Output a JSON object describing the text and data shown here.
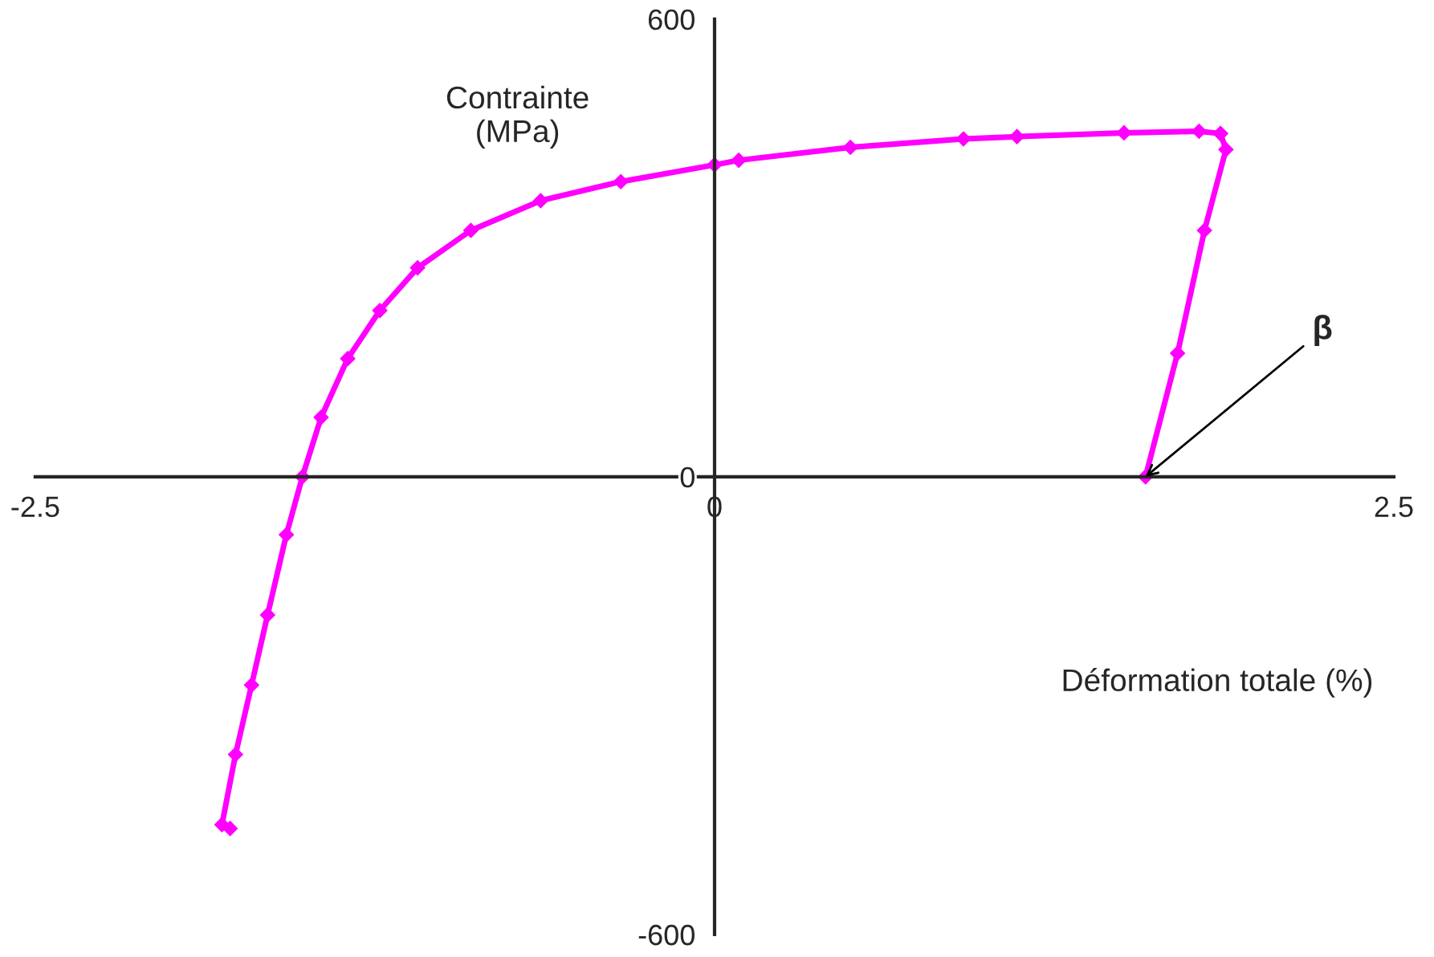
{
  "chart_data": {
    "type": "line",
    "xlabel": "Déformation totale (%)",
    "ylabel": "Contrainte\n(MPa)",
    "xlim": [
      -2.5,
      2.5
    ],
    "ylim": [
      -600,
      600
    ],
    "xticks": [
      -2.5,
      0,
      2.5
    ],
    "yticks": [
      -600,
      0,
      600
    ],
    "grid": false,
    "legend": false,
    "marker": "diamond",
    "line_style": "solid",
    "series": [
      {
        "color": "#ff00ff",
        "x": [
          -1.783,
          -1.813,
          -1.763,
          -1.704,
          -1.645,
          -1.576,
          -1.517,
          -1.448,
          -1.35,
          -1.232,
          -1.093,
          -0.897,
          -0.64,
          -0.345,
          0,
          0.089,
          0.5,
          0.916,
          1.113,
          1.507,
          1.783,
          1.862
        ],
        "values": [
          -461,
          -456,
          -364,
          -273,
          -181,
          -76,
          0,
          78,
          155,
          218,
          274,
          323,
          362,
          387,
          409,
          415,
          432,
          443,
          446,
          451,
          453,
          450
        ]
      },
      {
        "color": "#ff00ff",
        "x": [
          1.862,
          1.882,
          1.803,
          1.704,
          1.586
        ],
        "values": [
          450,
          429,
          323,
          162,
          0
        ]
      }
    ],
    "annotations": [
      {
        "text": "β",
        "x": 1.586,
        "y": 0
      }
    ]
  }
}
